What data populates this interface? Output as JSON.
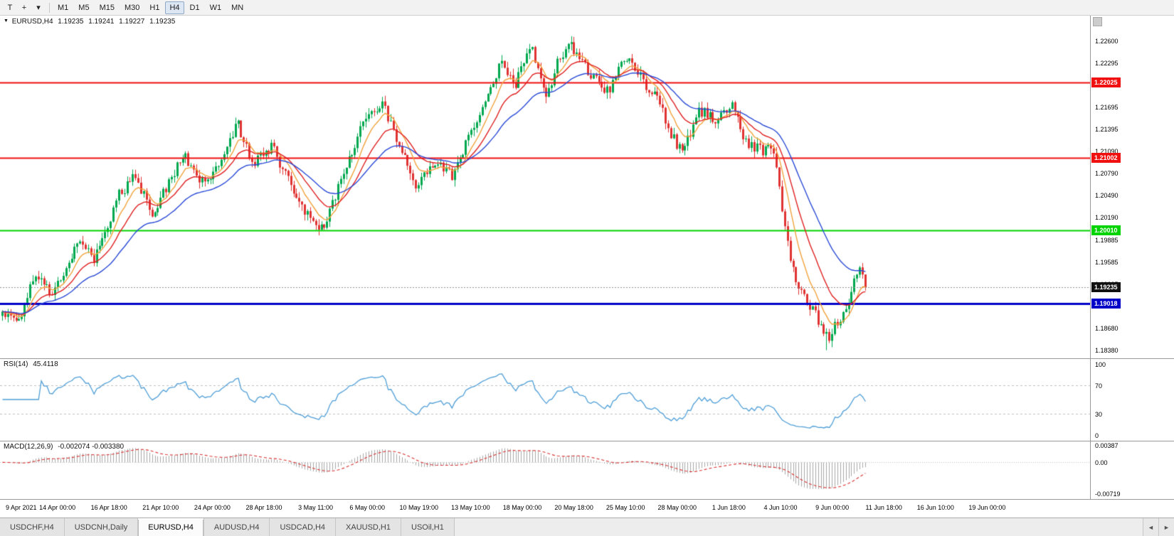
{
  "colors": {
    "up": "#00a84e",
    "down": "#e03232",
    "ema_fast": "#f2a33c",
    "ema_mid": "#e02020",
    "ema_slow": "#2b4bd7",
    "rsi_line": "#4f9fd8",
    "rsi_level": "#c0c0c0",
    "macd_hist": "#a8a8a8",
    "macd_signal": "#d83030",
    "current_line": "#909090",
    "current_tag_bg": "#111111",
    "axis_text": "#000000"
  },
  "toolbar": {
    "templates_button": "T",
    "cursor_button": "+",
    "dropdown_caret": "▾",
    "timeframes": [
      "M1",
      "M5",
      "M15",
      "M30",
      "H1",
      "H4",
      "D1",
      "W1",
      "MN"
    ],
    "selected_timeframe": "H4"
  },
  "chart": {
    "marker": "▼",
    "symbol": "EURUSD,H4",
    "open": "1.19235",
    "high": "1.19241",
    "low": "1.19227",
    "close": "1.19235"
  },
  "rsi_panel": {
    "label": "RSI(14)",
    "value": "45.4118",
    "ticks": [
      "100",
      "70",
      "30",
      "0"
    ]
  },
  "macd_panel": {
    "label": "MACD(12,26,9)",
    "values": "-0.002074 -0.003380",
    "ticks": [
      "0.00387",
      "0.00",
      "-0.00719"
    ]
  },
  "chart_data": {
    "type": "candlestick",
    "symbol": "EURUSD",
    "timeframe": "H4",
    "current_price": 1.19235,
    "ohlc_readout": {
      "open": 1.19235,
      "high": 1.19241,
      "low": 1.19227,
      "close": 1.19235
    },
    "price_axis": {
      "ylim": [
        1.1827,
        1.2294
      ],
      "ticks": [
        "1.22600",
        "1.22295",
        "1.21995",
        "1.21695",
        "1.21395",
        "1.21090",
        "1.20790",
        "1.20490",
        "1.20190",
        "1.19885",
        "1.19585",
        "1.19285",
        "1.18980",
        "1.18680",
        "1.18380"
      ]
    },
    "levels": [
      {
        "price": 1.22025,
        "label": "1.22025",
        "color": "#f01010",
        "width": 2
      },
      {
        "price": 1.21002,
        "label": "1.21002",
        "color": "#f01010",
        "width": 2
      },
      {
        "price": 1.2001,
        "label": "1.20010",
        "color": "#00d400",
        "width": 2
      },
      {
        "price": 1.19018,
        "label": "1.19018",
        "color": "#0000c8",
        "width": 3
      }
    ],
    "current_tag": "1.19235",
    "overlays": [
      {
        "name": "fast ma",
        "period": 8,
        "color": "#f2a33c"
      },
      {
        "name": "mid ma",
        "period": 17,
        "color": "#e02020"
      },
      {
        "name": "slow ma",
        "period": 34,
        "color": "#2b4bd7"
      }
    ],
    "candles": {
      "count": 312,
      "spacing": 3.9,
      "body_width": 3,
      "x0": 2,
      "noise": 0.0016,
      "wick": 0.0009,
      "close_waypoints": [
        [
          0.0,
          1.189
        ],
        [
          0.018,
          1.1875
        ],
        [
          0.04,
          1.1945
        ],
        [
          0.057,
          1.1915
        ],
        [
          0.09,
          1.199
        ],
        [
          0.105,
          1.1958
        ],
        [
          0.135,
          1.205
        ],
        [
          0.153,
          1.2075
        ],
        [
          0.175,
          1.2025
        ],
        [
          0.21,
          1.2105
        ],
        [
          0.232,
          1.2068
        ],
        [
          0.255,
          1.2095
        ],
        [
          0.272,
          1.2148
        ],
        [
          0.29,
          1.2088
        ],
        [
          0.312,
          1.2118
        ],
        [
          0.335,
          1.2058
        ],
        [
          0.358,
          1.2012
        ],
        [
          0.372,
          1.2002
        ],
        [
          0.398,
          1.209
        ],
        [
          0.425,
          1.2165
        ],
        [
          0.442,
          1.2172
        ],
        [
          0.458,
          1.2122
        ],
        [
          0.48,
          1.2058
        ],
        [
          0.503,
          1.2098
        ],
        [
          0.52,
          1.2075
        ],
        [
          0.555,
          1.2162
        ],
        [
          0.578,
          1.2228
        ],
        [
          0.593,
          1.2198
        ],
        [
          0.612,
          1.2252
        ],
        [
          0.63,
          1.218
        ],
        [
          0.645,
          1.2235
        ],
        [
          0.658,
          1.2258
        ],
        [
          0.672,
          1.2228
        ],
        [
          0.7,
          1.2188
        ],
        [
          0.722,
          1.2238
        ],
        [
          0.742,
          1.2205
        ],
        [
          0.757,
          1.2188
        ],
        [
          0.775,
          1.2132
        ],
        [
          0.787,
          1.2106
        ],
        [
          0.808,
          1.2165
        ],
        [
          0.83,
          1.2152
        ],
        [
          0.845,
          1.2172
        ],
        [
          0.862,
          1.212
        ],
        [
          0.878,
          1.2112
        ],
        [
          0.895,
          1.2108
        ],
        [
          0.908,
          1.1995
        ],
        [
          0.92,
          1.1932
        ],
        [
          0.932,
          1.1908
        ],
        [
          0.948,
          1.1872
        ],
        [
          0.958,
          1.1856
        ],
        [
          0.97,
          1.1882
        ],
        [
          0.982,
          1.1912
        ],
        [
          0.993,
          1.1952
        ],
        [
          1.0,
          1.19235
        ]
      ],
      "spikes": [
        {
          "t": 0.955,
          "low": 1.1838
        },
        {
          "t": 0.658,
          "high": 1.2266
        },
        {
          "t": 0.272,
          "high": 1.2152
        }
      ]
    },
    "rsi": {
      "period": 14,
      "value": 45.4118,
      "ylim": [
        -8,
        108
      ],
      "levels": [
        70,
        30
      ]
    },
    "macd": {
      "fast": 12,
      "slow": 26,
      "signal": 9,
      "value": -0.002074,
      "signal_value": -0.00338,
      "ylim": [
        -0.0085,
        0.005
      ]
    },
    "time_labels": [
      "9 Apr 2021",
      "14 Apr 00:00",
      "16 Apr 18:00",
      "21 Apr 10:00",
      "24 Apr 00:00",
      "28 Apr 18:00",
      "3 May 11:00",
      "6 May 00:00",
      "10 May 19:00",
      "13 May 10:00",
      "18 May 00:00",
      "20 May 18:00",
      "25 May 10:00",
      "28 May 00:00",
      "1 Jun 18:00",
      "4 Jun 10:00",
      "9 Jun 00:00",
      "11 Jun 18:00",
      "16 Jun 10:00",
      "19 Jun 00:00"
    ]
  },
  "tab_bar": {
    "tabs": [
      "USDCHF,H4",
      "USDCNH,Daily",
      "EURUSD,H4",
      "AUDUSD,H4",
      "USDCAD,H4",
      "XAUUSD,H1",
      "USOil,H1"
    ],
    "active": "EURUSD,H4",
    "scroll_left": "◄",
    "scroll_right": "►"
  }
}
